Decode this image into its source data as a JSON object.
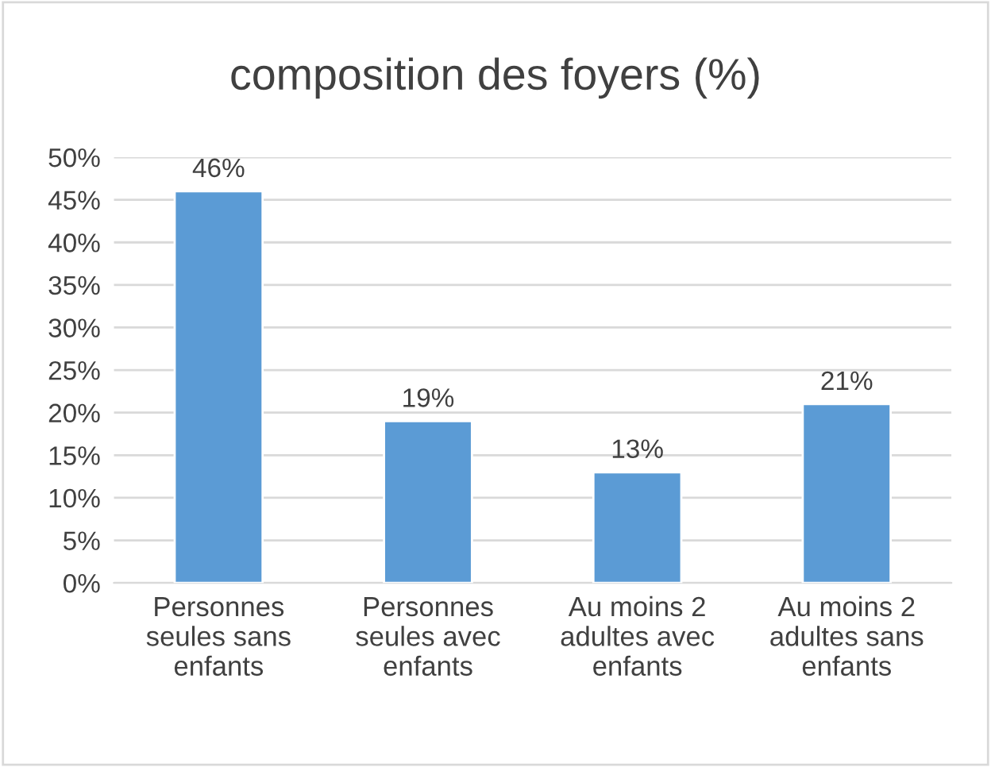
{
  "chart_data": {
    "type": "bar",
    "title": "composition des foyers (%)",
    "categories": [
      "Personnes\nseules sans\nenfants",
      "Personnes\nseules avec\nenfants",
      "Au moins 2\nadultes avec\nenfants",
      "Au moins 2\nadultes sans\nenfants"
    ],
    "values": [
      46,
      19,
      13,
      21
    ],
    "value_labels": [
      "46%",
      "19%",
      "13%",
      "21%"
    ],
    "color": "#5b9bd5",
    "ylim": [
      0,
      50
    ],
    "yticks": [
      {
        "value": 0,
        "label": "0%"
      },
      {
        "value": 5,
        "label": "5%"
      },
      {
        "value": 10,
        "label": "10%"
      },
      {
        "value": 15,
        "label": "15%"
      },
      {
        "value": 20,
        "label": "20%"
      },
      {
        "value": 25,
        "label": "25%"
      },
      {
        "value": 30,
        "label": "30%"
      },
      {
        "value": 35,
        "label": "35%"
      },
      {
        "value": 40,
        "label": "40%"
      },
      {
        "value": 45,
        "label": "45%"
      },
      {
        "value": 50,
        "label": "50%"
      }
    ],
    "grid": "y"
  }
}
